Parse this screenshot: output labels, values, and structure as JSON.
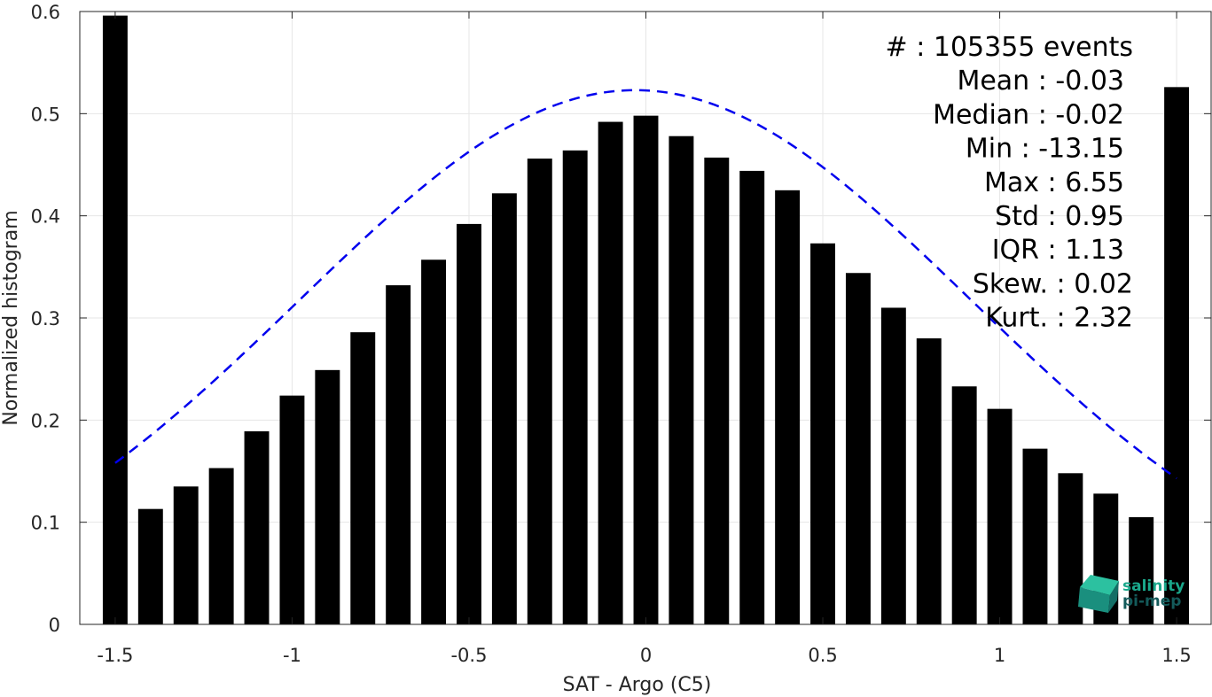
{
  "colors": {
    "bar": "#000000",
    "fit_line": "#0000ee",
    "grid": "#e6e6e6",
    "axis": "#262626",
    "logo_primary": "#1aa88c",
    "logo_secondary": "#145a5a"
  },
  "chart_data": {
    "type": "bar",
    "xlabel": "SAT - Argo (C5)",
    "ylabel": "Normalized histogram",
    "xlim": [
      -1.6,
      1.6
    ],
    "ylim": [
      0,
      0.6
    ],
    "grid": true,
    "x_ticks": [
      -1.5,
      -1,
      -0.5,
      0,
      0.5,
      1,
      1.5
    ],
    "x_tick_labels": [
      "-1.5",
      "-1",
      "-0.5",
      "0",
      "0.5",
      "1",
      "1.5"
    ],
    "y_ticks": [
      0,
      0.1,
      0.2,
      0.3,
      0.4,
      0.5,
      0.6
    ],
    "y_tick_labels": [
      "0",
      "0.1",
      "0.2",
      "0.3",
      "0.4",
      "0.5",
      "0.6"
    ],
    "bar_width": 0.07,
    "series": [
      {
        "x": [
          -1.5,
          -1.4,
          -1.3,
          -1.2,
          -1.1,
          -1.0,
          -0.9,
          -0.8,
          -0.7,
          -0.6,
          -0.5,
          -0.4,
          -0.3,
          -0.2,
          -0.1,
          0.0,
          0.1,
          0.2,
          0.3,
          0.4,
          0.5,
          0.6,
          0.7,
          0.8,
          0.9,
          1.0,
          1.1,
          1.2,
          1.3,
          1.4,
          1.5
        ],
        "values": [
          0.596,
          0.113,
          0.135,
          0.153,
          0.189,
          0.224,
          0.249,
          0.286,
          0.332,
          0.357,
          0.392,
          0.422,
          0.456,
          0.464,
          0.492,
          0.498,
          0.478,
          0.457,
          0.444,
          0.425,
          0.373,
          0.344,
          0.31,
          0.28,
          0.233,
          0.211,
          0.172,
          0.148,
          0.128,
          0.105,
          0.526
        ]
      }
    ],
    "fit_curve": {
      "style": "dashed",
      "mean": -0.03,
      "std": 0.95,
      "x_range": [
        -1.5,
        1.5
      ],
      "peak": 0.523
    }
  },
  "stats": {
    "lines": [
      "#  : 105355 events",
      "Mean : -0.03",
      "Median : -0.02",
      "Min : -13.15",
      "Max : 6.55",
      "Std : 0.95",
      "IQR : 1.13",
      "Skew. : 0.02",
      "Kurt. : 2.32"
    ]
  },
  "logo": {
    "line1": "salinity",
    "line2": "pi-mep"
  }
}
